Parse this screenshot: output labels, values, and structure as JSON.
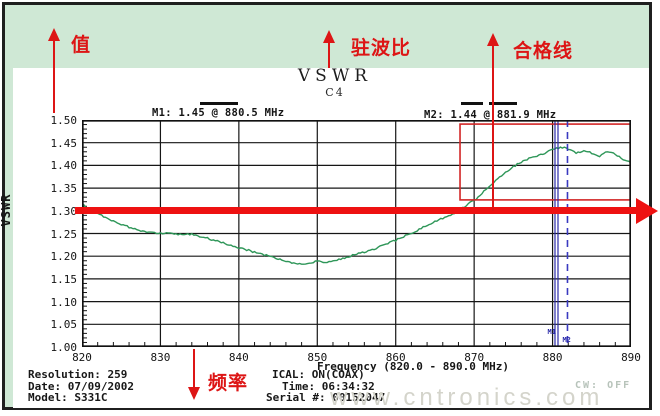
{
  "page": {
    "watermark": "www.cntronics.com",
    "background_color": "#cfe8d5",
    "accent_red": "#dd1515",
    "trace_green": "#2e9658",
    "marker_blue": "#2a2aa8"
  },
  "header": {
    "title": "VSWR",
    "subtitle": "C4"
  },
  "annotations": {
    "value_label": "值",
    "vswr_label": "驻波比",
    "pass_line_label": "合格线",
    "frequency_label": "频率"
  },
  "markers": {
    "m1": {
      "text": "M1: 1.45 @ 880.5 MHz",
      "name": "M1",
      "value": 1.45,
      "freq_mhz": 880.5
    },
    "m2": {
      "text": "M2: 1.44 @ 881.9 MHz",
      "name": "M2",
      "value": 1.44,
      "freq_mhz": 881.9
    }
  },
  "status": {
    "resolution": "Resolution: 259",
    "date": "Date: 07/09/2002",
    "model": "Model: S331C",
    "ical": "ICAL: ON(COAX)",
    "time": "Time: 06:34:32",
    "serial": "Serial #: 00152047",
    "cw": "CW: OFF"
  },
  "chart_data": {
    "type": "line",
    "title": "VSWR",
    "subtitle": "C4",
    "xlabel": "Frequency (820.0 - 890.0 MHz)",
    "ylabel": "VSWR",
    "xlim": [
      820,
      890
    ],
    "ylim": [
      1.0,
      1.5
    ],
    "x_ticks": [
      "820",
      "830",
      "840",
      "850",
      "860",
      "870",
      "880",
      "890"
    ],
    "y_ticks": [
      "1.50",
      "1.45",
      "1.40",
      "1.35",
      "1.30",
      "1.25",
      "1.20",
      "1.15",
      "1.10",
      "1.05",
      "1.00"
    ],
    "grid": true,
    "limit_line_value": 1.3,
    "highlight_rect": {
      "x1": 868.2,
      "x2": 889.9,
      "y1": 1.324,
      "y2": 1.491
    },
    "vertical_markers": [
      {
        "name": "M1",
        "freq": 880.5,
        "style": "solid"
      },
      {
        "name": "M2",
        "freq": 881.9,
        "style": "dashed"
      }
    ],
    "series": [
      {
        "name": "VSWR trace",
        "color": "#2e9658",
        "x": [
          820,
          821,
          822,
          823,
          824,
          825,
          826,
          827,
          828,
          829,
          830,
          831,
          832,
          833,
          834,
          835,
          836,
          837,
          838,
          839,
          840,
          841,
          842,
          843,
          844,
          845,
          846,
          847,
          848,
          849,
          850,
          851,
          852,
          853,
          854,
          855,
          856,
          857,
          858,
          859,
          860,
          861,
          862,
          863,
          864,
          865,
          866,
          867,
          868,
          869,
          870,
          871,
          872,
          873,
          874,
          875,
          876,
          877,
          878,
          879,
          880,
          881,
          882,
          883,
          884,
          885,
          886,
          887,
          888,
          889,
          890
        ],
        "y": [
          1.315,
          1.303,
          1.293,
          1.285,
          1.278,
          1.27,
          1.264,
          1.258,
          1.254,
          1.251,
          1.25,
          1.252,
          1.249,
          1.247,
          1.249,
          1.244,
          1.24,
          1.234,
          1.229,
          1.224,
          1.219,
          1.214,
          1.209,
          1.204,
          1.199,
          1.194,
          1.189,
          1.185,
          1.182,
          1.184,
          1.189,
          1.185,
          1.189,
          1.194,
          1.199,
          1.204,
          1.209,
          1.215,
          1.221,
          1.228,
          1.235,
          1.243,
          1.251,
          1.259,
          1.268,
          1.276,
          1.284,
          1.291,
          1.3,
          1.312,
          1.323,
          1.338,
          1.355,
          1.371,
          1.385,
          1.397,
          1.407,
          1.415,
          1.421,
          1.427,
          1.434,
          1.44,
          1.437,
          1.428,
          1.432,
          1.427,
          1.42,
          1.431,
          1.424,
          1.414,
          1.405
        ]
      }
    ]
  }
}
